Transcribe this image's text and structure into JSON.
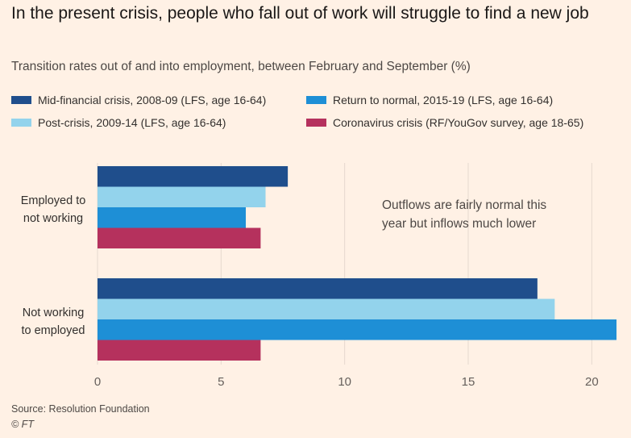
{
  "header": {
    "title": "In the present crisis, people who fall out of work will struggle to find a new job",
    "subtitle": "Transition rates out of and into employment, between February and September (%)"
  },
  "footer": {
    "source": "Source: Resolution Foundation",
    "copyright": "© FT"
  },
  "colors": {
    "background": "#fff1e5",
    "gridline": "#e6d9ce",
    "axis_text": "#66605c"
  },
  "chart_data": {
    "type": "bar",
    "orientation": "horizontal",
    "title": "In the present crisis, people who fall out of work will struggle to find a new job",
    "subtitle": "Transition rates out of and into employment, between February and September (%)",
    "categories": [
      "Employed to not working",
      "Not working to employed"
    ],
    "category_lines": [
      [
        "Employed to",
        "not working"
      ],
      [
        "Not working",
        "to employed"
      ]
    ],
    "series": [
      {
        "name": "Mid-financial crisis, 2008-09 (LFS, age 16-64)",
        "color": "#1f4e8c",
        "values": [
          7.7,
          17.8
        ]
      },
      {
        "name": "Post-crisis, 2009-14 (LFS, age 16-64)",
        "color": "#93d3ec",
        "values": [
          6.8,
          18.5
        ]
      },
      {
        "name": "Return to normal, 2015-19 (LFS, age 16-64)",
        "color": "#1e8fd6",
        "values": [
          6.0,
          21.0
        ]
      },
      {
        "name": "Coronavirus crisis (RF/YouGov survey, age 18-65)",
        "color": "#b5315d",
        "values": [
          6.6,
          6.6
        ]
      }
    ],
    "xlim": [
      0,
      21
    ],
    "xticks": [
      0,
      5,
      10,
      15,
      20
    ],
    "grid": true,
    "legend_position": "top",
    "annotation_lines": [
      "Outflows are fairly normal this",
      "year but inflows much lower"
    ],
    "xlabel": "",
    "ylabel": ""
  }
}
